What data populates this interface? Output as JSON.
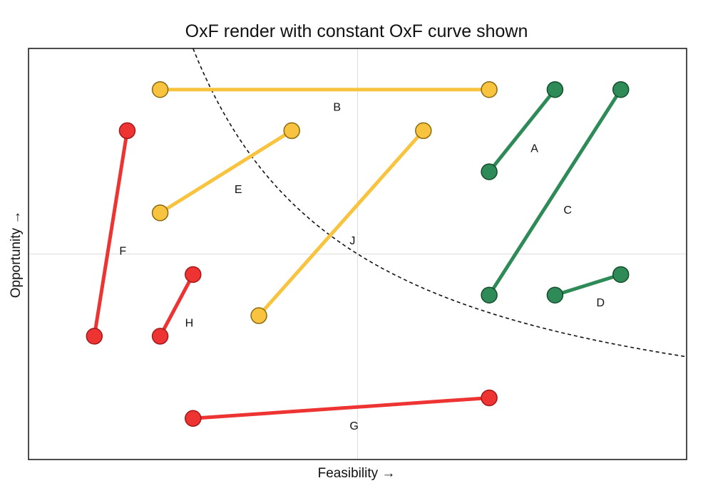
{
  "chart_data": {
    "type": "line",
    "title": "OxF render with constant OxF curve shown",
    "xlabel": "Feasibility →",
    "ylabel": "Opportunity →",
    "xlim": [
      0,
      10
    ],
    "ylim": [
      0,
      10
    ],
    "grid": "center lines only",
    "curve": {
      "type": "constant product",
      "O_times_F": 25,
      "style": "dashed"
    },
    "colors": {
      "red": "#ee3333",
      "yellow": "#f8c440",
      "green": "#2e8b57"
    },
    "series": [
      {
        "name": "A",
        "color": "green",
        "points": [
          [
            7,
            7
          ],
          [
            8,
            9
          ]
        ]
      },
      {
        "name": "B",
        "color": "yellow",
        "points": [
          [
            2,
            9
          ],
          [
            7,
            9
          ]
        ]
      },
      {
        "name": "C",
        "color": "green",
        "points": [
          [
            7,
            4
          ],
          [
            9,
            9
          ]
        ]
      },
      {
        "name": "D",
        "color": "green",
        "points": [
          [
            8,
            4
          ],
          [
            9,
            4.5
          ]
        ]
      },
      {
        "name": "E",
        "color": "yellow",
        "points": [
          [
            2,
            6
          ],
          [
            4,
            8
          ]
        ]
      },
      {
        "name": "F",
        "color": "red",
        "points": [
          [
            1,
            3
          ],
          [
            1.5,
            8
          ]
        ]
      },
      {
        "name": "G",
        "color": "red",
        "points": [
          [
            2.5,
            1
          ],
          [
            7,
            1.5
          ]
        ]
      },
      {
        "name": "H",
        "color": "red",
        "points": [
          [
            2,
            3
          ],
          [
            2.5,
            4.5
          ]
        ]
      },
      {
        "name": "J",
        "color": "yellow",
        "points": [
          [
            3.5,
            3.5
          ],
          [
            6,
            8
          ]
        ]
      }
    ]
  }
}
